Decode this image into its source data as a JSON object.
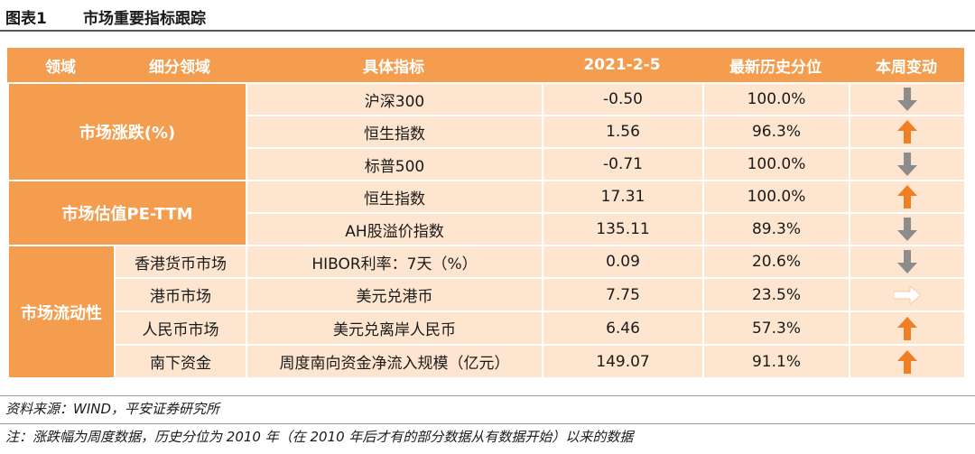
{
  "figure": {
    "label": "图表1",
    "title": "市场重要指标跟踪"
  },
  "colors": {
    "header_bg": "#f49d4e",
    "cell_bg": "#fde5cf",
    "arrow_up": "#f07f24",
    "arrow_down": "#8c8c8c",
    "arrow_flat": "#fde5cf"
  },
  "table": {
    "headers": [
      "领域",
      "细分领域",
      "具体指标",
      "2021-2-5",
      "最新历史分位",
      "本周变动"
    ],
    "categories": [
      {
        "label": "市场涨跌(%)"
      },
      {
        "label": "市场估值PE-TTM"
      },
      {
        "label": "市场流动性"
      }
    ],
    "subcategories": [
      "香港货币市场",
      "港币市场",
      "人民币市场",
      "南下资金"
    ],
    "rows": [
      {
        "indicator": "沪深300",
        "value": "-0.50",
        "percentile": "100.0%",
        "change": "down"
      },
      {
        "indicator": "恒生指数",
        "value": "1.56",
        "percentile": "96.3%",
        "change": "up"
      },
      {
        "indicator": "标普500",
        "value": "-0.71",
        "percentile": "100.0%",
        "change": "down"
      },
      {
        "indicator": "恒生指数",
        "value": "17.31",
        "percentile": "100.0%",
        "change": "up"
      },
      {
        "indicator": "AH股溢价指数",
        "value": "135.11",
        "percentile": "89.3%",
        "change": "down"
      },
      {
        "indicator": "HIBOR利率：7天（%）",
        "value": "0.09",
        "percentile": "20.6%",
        "change": "down"
      },
      {
        "indicator": "美元兑港币",
        "value": "7.75",
        "percentile": "23.5%",
        "change": "right"
      },
      {
        "indicator": "美元兑离岸人民币",
        "value": "6.46",
        "percentile": "57.3%",
        "change": "up"
      },
      {
        "indicator": "周度南向资金净流入规模（亿元）",
        "value": "149.07",
        "percentile": "91.1%",
        "change": "up"
      }
    ]
  },
  "source": "资料来源：WIND，平安证券研究所",
  "note": "注：涨跌幅为周度数据，历史分位为 2010 年（在 2010 年后才有的部分数据从有数据开始）以来的数据"
}
